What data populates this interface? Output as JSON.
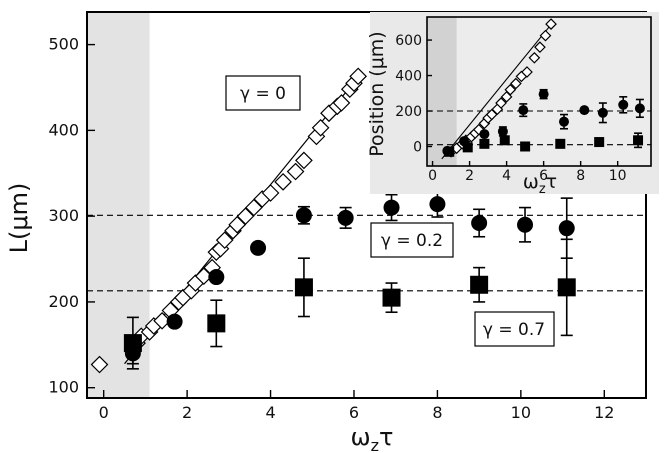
{
  "chart_data": {
    "main": {
      "type": "scatter",
      "xlabel": "ω_zτ",
      "xlabel_base": "ω",
      "xlabel_sub": "z",
      "xlabel_tail": "τ",
      "ylabel": "L(μm)",
      "xlim": [
        -0.4,
        13
      ],
      "ylim": [
        88,
        538
      ],
      "xticks": [
        "0",
        "2",
        "4",
        "6",
        "8",
        "10",
        "12"
      ],
      "yticks": [
        "100",
        "200",
        "300",
        "400",
        "500"
      ],
      "shaded_x_range": [
        -0.4,
        1.1
      ],
      "series": [
        {
          "marker": "open-diamond",
          "points": [
            [
              -0.1,
              127
            ],
            [
              0.7,
              145
            ],
            [
              0.8,
              152
            ],
            [
              0.9,
              160
            ],
            [
              1.1,
              165
            ],
            [
              1.2,
              172
            ],
            [
              1.4,
              178
            ],
            [
              1.6,
              190
            ],
            [
              1.8,
              200
            ],
            [
              1.9,
              205
            ],
            [
              2.1,
              213
            ],
            [
              2.2,
              222
            ],
            [
              2.4,
              230
            ],
            [
              2.6,
              240
            ],
            [
              2.7,
              258
            ],
            [
              2.8,
              262
            ],
            [
              2.9,
              272
            ],
            [
              3.1,
              283
            ],
            [
              3.2,
              290
            ],
            [
              3.4,
              300
            ],
            [
              3.6,
              310
            ],
            [
              3.8,
              320
            ],
            [
              4.0,
              327
            ],
            [
              4.3,
              340
            ],
            [
              4.6,
              352
            ],
            [
              4.8,
              365
            ],
            [
              5.1,
              393
            ],
            [
              5.2,
              403
            ],
            [
              5.4,
              420
            ],
            [
              5.6,
              428
            ],
            [
              5.7,
              432
            ],
            [
              5.9,
              448
            ],
            [
              6.0,
              455
            ],
            [
              6.1,
              463
            ]
          ]
        },
        {
          "name": "γ = 0.2",
          "marker": "filled-circle",
          "points": [
            [
              0.7,
              140,
              12
            ],
            [
              1.7,
              177,
              0
            ],
            [
              2.7,
              229,
              0
            ],
            [
              3.7,
              263,
              0
            ],
            [
              4.8,
              301,
              10
            ],
            [
              5.8,
              298,
              12
            ],
            [
              6.9,
              310,
              15
            ],
            [
              8.0,
              314,
              15
            ],
            [
              9.0,
              292,
              16
            ],
            [
              10.1,
              290,
              20
            ],
            [
              11.1,
              286,
              35
            ]
          ]
        },
        {
          "name": "γ = 0.7",
          "marker": "filled-square",
          "points": [
            [
              0.7,
              152,
              30
            ],
            [
              2.7,
              175,
              27
            ],
            [
              4.8,
              217,
              34
            ],
            [
              6.9,
              205,
              17
            ],
            [
              9.0,
              220,
              20
            ],
            [
              11.1,
              217,
              56
            ]
          ]
        }
      ],
      "fit_line": {
        "x": [
          0.5,
          6.2
        ],
        "y": [
          128,
          468
        ]
      },
      "reference_lines": [
        301,
        213
      ],
      "annotations": [
        "γ = 0",
        "γ = 0.2",
        "γ = 0.7"
      ]
    },
    "inset": {
      "type": "scatter",
      "xlabel": "ω_zτ",
      "xlabel_base": "ω",
      "xlabel_sub": "z",
      "xlabel_tail": "τ",
      "ylabel": "Position (μm)",
      "xlim": [
        -0.3,
        11.8
      ],
      "ylim": [
        -110,
        730
      ],
      "xticks": [
        "0",
        "2",
        "4",
        "6",
        "8",
        "10"
      ],
      "yticks": [
        "0",
        "200",
        "400",
        "600"
      ],
      "shaded_x_range": [
        -0.3,
        1.3
      ],
      "series": [
        {
          "marker": "open-diamond",
          "points": [
            [
              1.0,
              -30
            ],
            [
              1.3,
              -10
            ],
            [
              1.6,
              15
            ],
            [
              1.8,
              35
            ],
            [
              2.1,
              55
            ],
            [
              2.3,
              75
            ],
            [
              2.5,
              95
            ],
            [
              2.8,
              130
            ],
            [
              3.0,
              160
            ],
            [
              3.2,
              180
            ],
            [
              3.5,
              210
            ],
            [
              3.7,
              245
            ],
            [
              4.0,
              280
            ],
            [
              4.2,
              320
            ],
            [
              4.5,
              355
            ],
            [
              4.8,
              395
            ],
            [
              5.1,
              420
            ],
            [
              5.5,
              500
            ],
            [
              5.8,
              560
            ],
            [
              6.1,
              625
            ],
            [
              6.4,
              690
            ]
          ]
        },
        {
          "marker": "filled-circle",
          "points": [
            [
              0.8,
              -25,
              0
            ],
            [
              1.7,
              30,
              0
            ],
            [
              2.8,
              70,
              0
            ],
            [
              3.8,
              85,
              25
            ],
            [
              4.9,
              205,
              35
            ],
            [
              6.0,
              295,
              25
            ],
            [
              7.1,
              140,
              40
            ],
            [
              8.2,
              205,
              0
            ],
            [
              9.2,
              190,
              55
            ],
            [
              10.3,
              235,
              45
            ],
            [
              11.2,
              215,
              50
            ]
          ]
        },
        {
          "marker": "filled-square",
          "points": [
            [
              0.9,
              -30,
              0
            ],
            [
              1.9,
              -5,
              0
            ],
            [
              2.8,
              15,
              0
            ],
            [
              3.9,
              35,
              0
            ],
            [
              5.0,
              0,
              0
            ],
            [
              6.9,
              15,
              0
            ],
            [
              9.0,
              25,
              0
            ],
            [
              11.1,
              35,
              40
            ]
          ]
        }
      ],
      "fit_line": {
        "x": [
          0.5,
          6.5
        ],
        "y": [
          -70,
          700
        ]
      },
      "reference_lines": [
        200,
        10
      ]
    }
  }
}
